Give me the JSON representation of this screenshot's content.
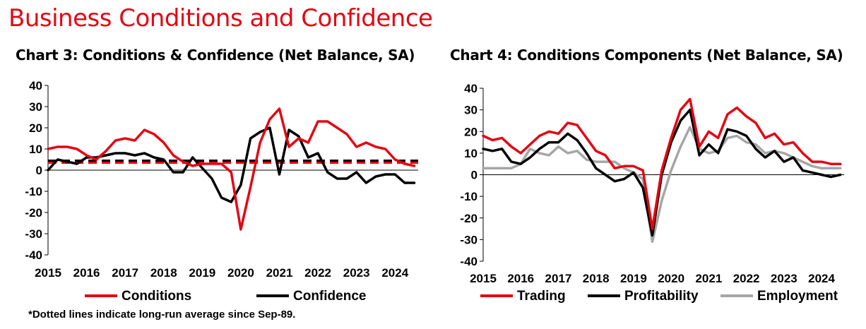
{
  "page_title": "Business Conditions and Confidence",
  "footnote": "*Dotted lines indicate long-run average since Sep-89.",
  "colors": {
    "red": "#e30613",
    "black": "#000000",
    "gray": "#a6a6a6"
  },
  "chart_data": [
    {
      "type": "line",
      "title": "Chart 3: Conditions & Confidence (Net Balance, SA)",
      "ylim": [
        -40,
        40
      ],
      "yticks": [
        "40",
        "30",
        "20",
        "10",
        "0",
        "-10",
        "-20",
        "-30",
        "-40"
      ],
      "xlim": [
        2015,
        2024.6
      ],
      "xticks": [
        "2015",
        "2016",
        "2017",
        "2018",
        "2019",
        "2020",
        "2021",
        "2022",
        "2023",
        "2024"
      ],
      "series": [
        {
          "name": "Conditions",
          "color": "#e30613",
          "x": [
            2015.0,
            2015.25,
            2015.5,
            2015.75,
            2016.0,
            2016.25,
            2016.5,
            2016.75,
            2017.0,
            2017.25,
            2017.5,
            2017.75,
            2018.0,
            2018.25,
            2018.5,
            2018.75,
            2019.0,
            2019.25,
            2019.5,
            2019.75,
            2020.0,
            2020.25,
            2020.5,
            2020.75,
            2021.0,
            2021.25,
            2021.5,
            2021.75,
            2022.0,
            2022.25,
            2022.5,
            2022.75,
            2023.0,
            2023.25,
            2023.5,
            2023.75,
            2024.0,
            2024.25,
            2024.5
          ],
          "values": [
            10,
            11,
            11,
            10,
            7,
            5,
            9,
            14,
            15,
            14,
            19,
            17,
            13,
            7,
            4,
            2,
            3,
            3,
            3,
            -1,
            -28,
            -8,
            13,
            24,
            29,
            11,
            15,
            13,
            23,
            23,
            20,
            17,
            11,
            13,
            11,
            10,
            5,
            3,
            2
          ]
        },
        {
          "name": "Confidence",
          "color": "#000000",
          "x": [
            2015.0,
            2015.25,
            2015.5,
            2015.75,
            2016.0,
            2016.25,
            2016.5,
            2016.75,
            2017.0,
            2017.25,
            2017.5,
            2017.75,
            2018.0,
            2018.25,
            2018.5,
            2018.75,
            2019.0,
            2019.25,
            2019.5,
            2019.75,
            2020.0,
            2020.25,
            2020.5,
            2020.75,
            2021.0,
            2021.25,
            2021.5,
            2021.75,
            2022.0,
            2022.25,
            2022.5,
            2022.75,
            2023.0,
            2023.25,
            2023.5,
            2023.75,
            2024.0,
            2024.25,
            2024.5
          ],
          "values": [
            0,
            5,
            4,
            3,
            6,
            6,
            7,
            8,
            8,
            7,
            8,
            6,
            5,
            -1,
            -1,
            6,
            1,
            -4,
            -13,
            -15,
            -7,
            15,
            18,
            20,
            -2,
            19,
            16,
            6,
            8,
            -1,
            -4,
            -4,
            -1,
            -6,
            -3,
            -2,
            -2,
            -6,
            -6
          ]
        },
        {
          "name": "Conditions long-run average",
          "color": "#e30613",
          "dashed": true,
          "x": [
            2015,
            2024.6
          ],
          "values": [
            3.5,
            3.5
          ]
        },
        {
          "name": "Confidence long-run average",
          "color": "#000000",
          "dashed": true,
          "x": [
            2015,
            2024.6
          ],
          "values": [
            4.5,
            4.5
          ]
        }
      ],
      "legend": [
        "Conditions",
        "Confidence"
      ]
    },
    {
      "type": "line",
      "title": "Chart 4: Conditions Components (Net Balance, SA)",
      "ylim": [
        -40,
        40
      ],
      "yticks": [
        "40",
        "30",
        "20",
        "10",
        "0",
        "-10",
        "-20",
        "-30",
        "-40"
      ],
      "xlim": [
        2015,
        2024.6
      ],
      "xticks": [
        "2015",
        "2016",
        "2017",
        "2018",
        "2019",
        "2020",
        "2021",
        "2022",
        "2023",
        "2024"
      ],
      "series": [
        {
          "name": "Trading",
          "color": "#e30613",
          "x": [
            2015.0,
            2015.25,
            2015.5,
            2015.75,
            2016.0,
            2016.25,
            2016.5,
            2016.75,
            2017.0,
            2017.25,
            2017.5,
            2017.75,
            2018.0,
            2018.25,
            2018.5,
            2018.75,
            2019.0,
            2019.25,
            2019.5,
            2019.75,
            2020.0,
            2020.25,
            2020.5,
            2020.75,
            2021.0,
            2021.25,
            2021.5,
            2021.75,
            2022.0,
            2022.25,
            2022.5,
            2022.75,
            2023.0,
            2023.25,
            2023.5,
            2023.75,
            2024.0,
            2024.25,
            2024.5
          ],
          "values": [
            18,
            16,
            17,
            13,
            10,
            14,
            18,
            20,
            19,
            24,
            23,
            17,
            11,
            9,
            3,
            4,
            4,
            2,
            -25,
            2,
            17,
            30,
            35,
            13,
            20,
            17,
            28,
            31,
            27,
            24,
            17,
            19,
            14,
            15,
            10,
            6,
            6,
            5,
            5
          ]
        },
        {
          "name": "Profitability",
          "color": "#000000",
          "x": [
            2015.0,
            2015.25,
            2015.5,
            2015.75,
            2016.0,
            2016.25,
            2016.5,
            2016.75,
            2017.0,
            2017.25,
            2017.5,
            2017.75,
            2018.0,
            2018.25,
            2018.5,
            2018.75,
            2019.0,
            2019.25,
            2019.5,
            2019.75,
            2020.0,
            2020.25,
            2020.5,
            2020.75,
            2021.0,
            2021.25,
            2021.5,
            2021.75,
            2022.0,
            2022.25,
            2022.5,
            2022.75,
            2023.0,
            2023.25,
            2023.5,
            2023.75,
            2024.0,
            2024.25,
            2024.5
          ],
          "values": [
            12,
            11,
            12,
            6,
            5,
            8,
            12,
            15,
            15,
            19,
            16,
            10,
            3,
            0,
            -3,
            -2,
            1,
            -6,
            -28,
            0,
            15,
            25,
            30,
            9,
            14,
            10,
            21,
            20,
            18,
            12,
            8,
            11,
            6,
            8,
            2,
            1,
            0,
            -1,
            0
          ]
        },
        {
          "name": "Employment",
          "color": "#a6a6a6",
          "x": [
            2015.0,
            2015.25,
            2015.5,
            2015.75,
            2016.0,
            2016.25,
            2016.5,
            2016.75,
            2017.0,
            2017.25,
            2017.5,
            2017.75,
            2018.0,
            2018.25,
            2018.5,
            2018.75,
            2019.0,
            2019.25,
            2019.5,
            2019.75,
            2020.0,
            2020.25,
            2020.5,
            2020.75,
            2021.0,
            2021.25,
            2021.5,
            2021.75,
            2022.0,
            2022.25,
            2022.5,
            2022.75,
            2023.0,
            2023.25,
            2023.5,
            2023.75,
            2024.0,
            2024.25,
            2024.5
          ],
          "values": [
            3,
            3,
            3,
            3,
            5,
            12,
            10,
            9,
            13,
            10,
            11,
            7,
            6,
            6,
            6,
            3,
            1,
            -2,
            -31,
            -12,
            2,
            13,
            22,
            12,
            10,
            11,
            17,
            18,
            15,
            14,
            10,
            11,
            10,
            8,
            6,
            4,
            3,
            3,
            3
          ]
        }
      ],
      "legend": [
        "Trading",
        "Profitability",
        "Employment"
      ]
    }
  ]
}
